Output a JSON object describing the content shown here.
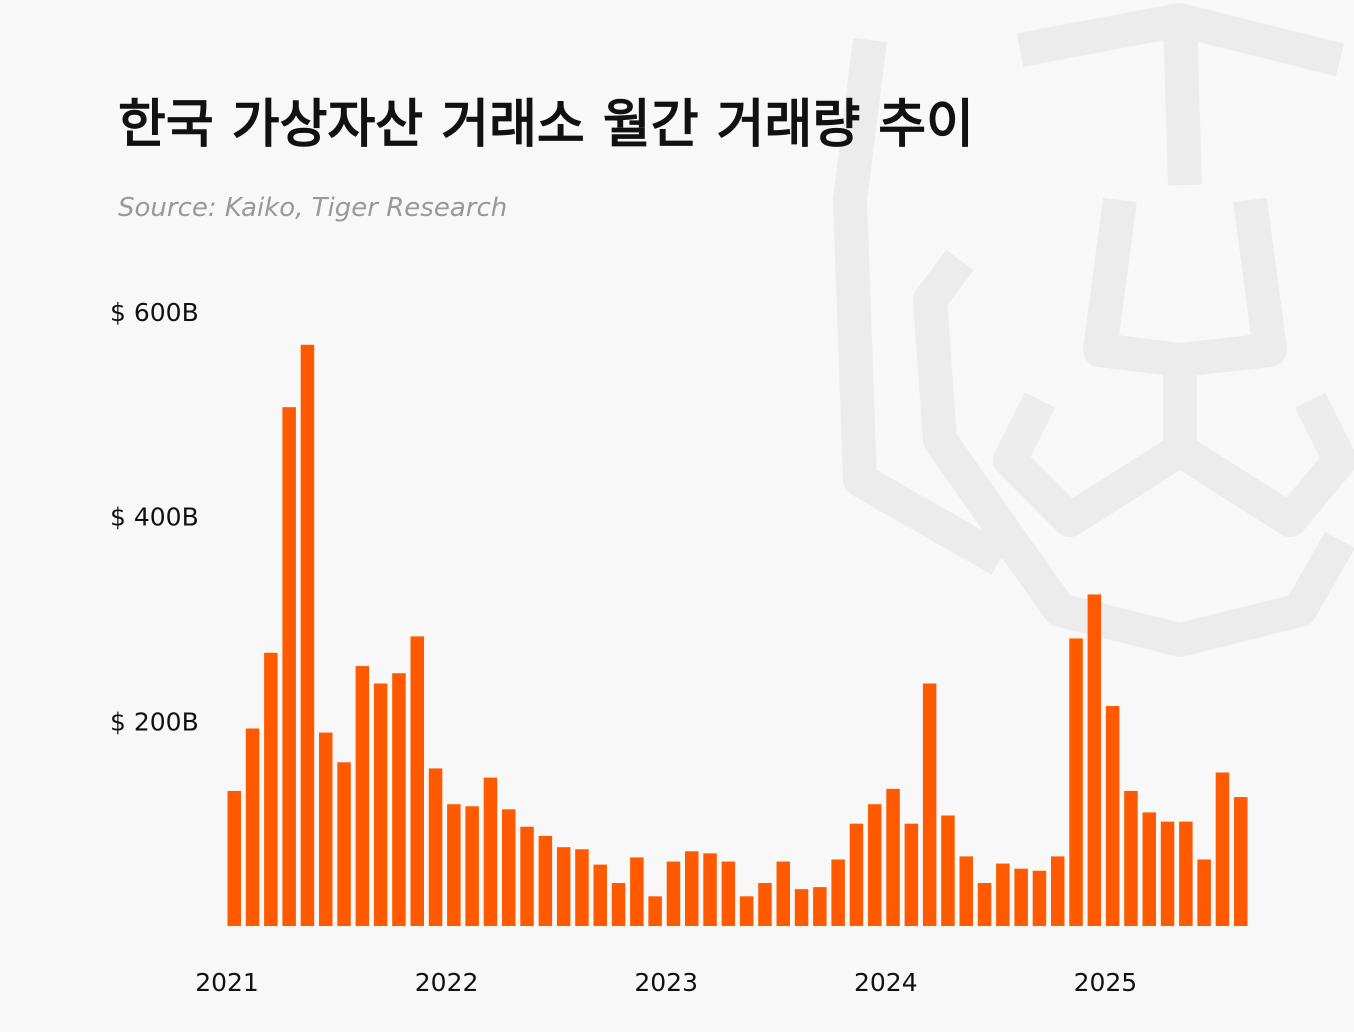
{
  "chart_data": {
    "type": "bar",
    "title": "한국 가상자산 거래소 월간 거래량 추이",
    "subtitle": "Source: Kaiko, Tiger Research",
    "categories": [
      "2021",
      null,
      null,
      null,
      null,
      null,
      null,
      null,
      null,
      null,
      null,
      null,
      "2022",
      null,
      null,
      null,
      null,
      null,
      null,
      null,
      null,
      null,
      null,
      null,
      "2023",
      null,
      null,
      null,
      null,
      null,
      null,
      null,
      null,
      null,
      null,
      null,
      "2024",
      null,
      null,
      null,
      null,
      null,
      null,
      null,
      null,
      null,
      null,
      null,
      "2025",
      null,
      null,
      null,
      null,
      null,
      null,
      null
    ],
    "values": [
      132,
      193,
      267,
      507,
      568,
      189,
      160,
      254,
      237,
      247,
      283,
      154,
      119,
      117,
      145,
      114,
      97,
      88,
      77,
      75,
      60,
      42,
      67,
      29,
      63,
      73,
      71,
      63,
      29,
      42,
      63,
      36,
      38,
      65,
      100,
      119,
      134,
      100,
      237,
      108,
      68,
      42,
      61,
      56,
      54,
      68,
      281,
      324,
      215,
      132,
      111,
      102,
      102,
      65,
      150,
      126
    ],
    "color": "#ff5a00",
    "ylim": [
      0,
      600
    ],
    "yticks": [
      {
        "value": 200,
        "label": "$ 200B"
      },
      {
        "value": 400,
        "label": "$ 400B"
      },
      {
        "value": 600,
        "label": "$ 600B"
      }
    ]
  }
}
